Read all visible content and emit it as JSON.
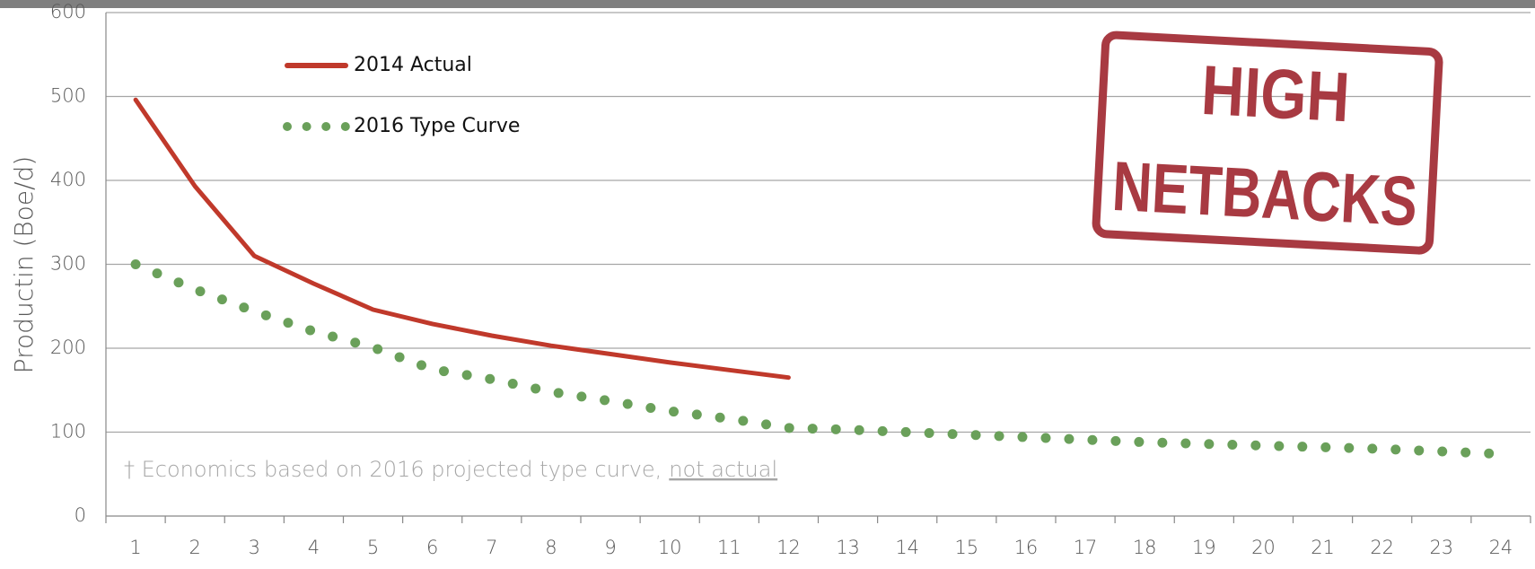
{
  "chart_data": {
    "type": "line",
    "y_label": "Productin (Boe/d)",
    "categories": [
      "1",
      "2",
      "3",
      "4",
      "5",
      "6",
      "7",
      "8",
      "9",
      "10",
      "11",
      "12",
      "13",
      "14",
      "15",
      "16",
      "17",
      "18",
      "19",
      "20",
      "21",
      "22",
      "23",
      "24"
    ],
    "series": [
      {
        "name": "2014 Actual",
        "color": "#c0392b",
        "style": "solid",
        "values": [
          496,
          393,
          310,
          277,
          246,
          229,
          215,
          203,
          193,
          183,
          174,
          165,
          null,
          null,
          null,
          null,
          null,
          null,
          null,
          null,
          null,
          null,
          null,
          null
        ]
      },
      {
        "name": "2016 Type Curve",
        "color": "#6aa05a",
        "style": "dotted",
        "values": [
          300,
          270,
          244,
          220,
          201,
          175,
          163,
          148,
          137,
          125,
          116,
          105,
          103,
          100,
          97,
          94,
          91,
          88,
          86,
          84,
          82,
          80,
          77,
          74
        ]
      }
    ],
    "ylim": [
      0,
      600
    ],
    "yticks": [
      0,
      100,
      200,
      300,
      400,
      500,
      600
    ],
    "grid": true,
    "footnote": "† Economics based on 2016 projected type curve,",
    "footnote_link": "not actual",
    "stamp": [
      "HIGH",
      "NETBACKS"
    ]
  }
}
